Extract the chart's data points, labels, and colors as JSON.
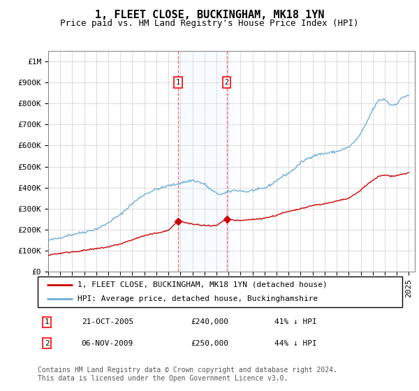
{
  "title": "1, FLEET CLOSE, BUCKINGHAM, MK18 1YN",
  "subtitle": "Price paid vs. HM Land Registry's House Price Index (HPI)",
  "ylim": [
    0,
    1050000
  ],
  "yticks": [
    0,
    100000,
    200000,
    300000,
    400000,
    500000,
    600000,
    700000,
    800000,
    900000,
    1000000
  ],
  "ytick_labels": [
    "£0",
    "£100K",
    "£200K",
    "£300K",
    "£400K",
    "£500K",
    "£600K",
    "£700K",
    "£800K",
    "£900K",
    "£1M"
  ],
  "xlim_start": 1995.0,
  "xlim_end": 2025.5,
  "sale1_x": 2005.8,
  "sale1_y": 240000,
  "sale1_label": "1",
  "sale1_date": "21-OCT-2005",
  "sale1_price": "£240,000",
  "sale1_hpi": "41% ↓ HPI",
  "sale2_x": 2009.85,
  "sale2_y": 250000,
  "sale2_label": "2",
  "sale2_date": "06-NOV-2009",
  "sale2_price": "£250,000",
  "sale2_hpi": "44% ↓ HPI",
  "hpi_line_color": "#6baed6",
  "sale_line_color": "#cc0000",
  "marker_color": "#cc0000",
  "shade_color": "#ddeeff",
  "grid_color": "#cccccc",
  "legend_label_sale": "1, FLEET CLOSE, BUCKINGHAM, MK18 1YN (detached house)",
  "legend_label_hpi": "HPI: Average price, detached house, Buckinghamshire",
  "footer": "Contains HM Land Registry data © Crown copyright and database right 2024.\nThis data is licensed under the Open Government Licence v3.0.",
  "title_fontsize": 11,
  "subtitle_fontsize": 9,
  "tick_fontsize": 8,
  "legend_fontsize": 8,
  "footer_fontsize": 7
}
